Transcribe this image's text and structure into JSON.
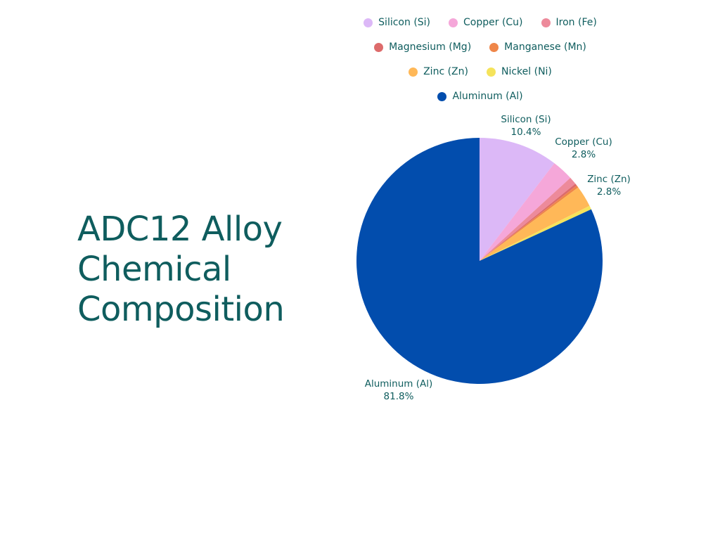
{
  "title_lines": [
    "ADC12 Alloy",
    "Chemical",
    "Composition"
  ],
  "chart_data": {
    "type": "pie",
    "unit": "%",
    "slices": [
      {
        "name": "Silicon (Si)",
        "value": 10.4,
        "color": "#dcb8f7",
        "label": "Silicon (Si)",
        "value_label": "10.4%"
      },
      {
        "name": "Copper (Cu)",
        "value": 2.8,
        "color": "#f5a7d9",
        "label": "Copper (Cu)",
        "value_label": "2.8%"
      },
      {
        "name": "Iron (Fe)",
        "value": 1.0,
        "color": "#ed8a9b"
      },
      {
        "name": "Magnesium (Mg)",
        "value": 0.3,
        "color": "#dd6b6b"
      },
      {
        "name": "Manganese (Mn)",
        "value": 0.3,
        "color": "#ef8649"
      },
      {
        "name": "Zinc (Zn)",
        "value": 2.8,
        "color": "#ffb858",
        "label": "Zinc (Zn)",
        "value_label": "2.8%"
      },
      {
        "name": "Nickel (Ni)",
        "value": 0.5,
        "color": "#f5e35b"
      },
      {
        "name": "Aluminum (Al)",
        "value": 81.8,
        "color": "#024dad",
        "label": "Aluminum (Al)",
        "value_label": "81.8%"
      }
    ],
    "legend_rows": [
      [
        "Silicon (Si)",
        "Copper (Cu)",
        "Iron (Fe)"
      ],
      [
        "Magnesium (Mg)",
        "Manganese (Mn)"
      ],
      [
        "Zinc (Zn)",
        "Nickel (Ni)"
      ],
      [
        "Aluminum (Al)"
      ]
    ],
    "legend_position": "top"
  }
}
